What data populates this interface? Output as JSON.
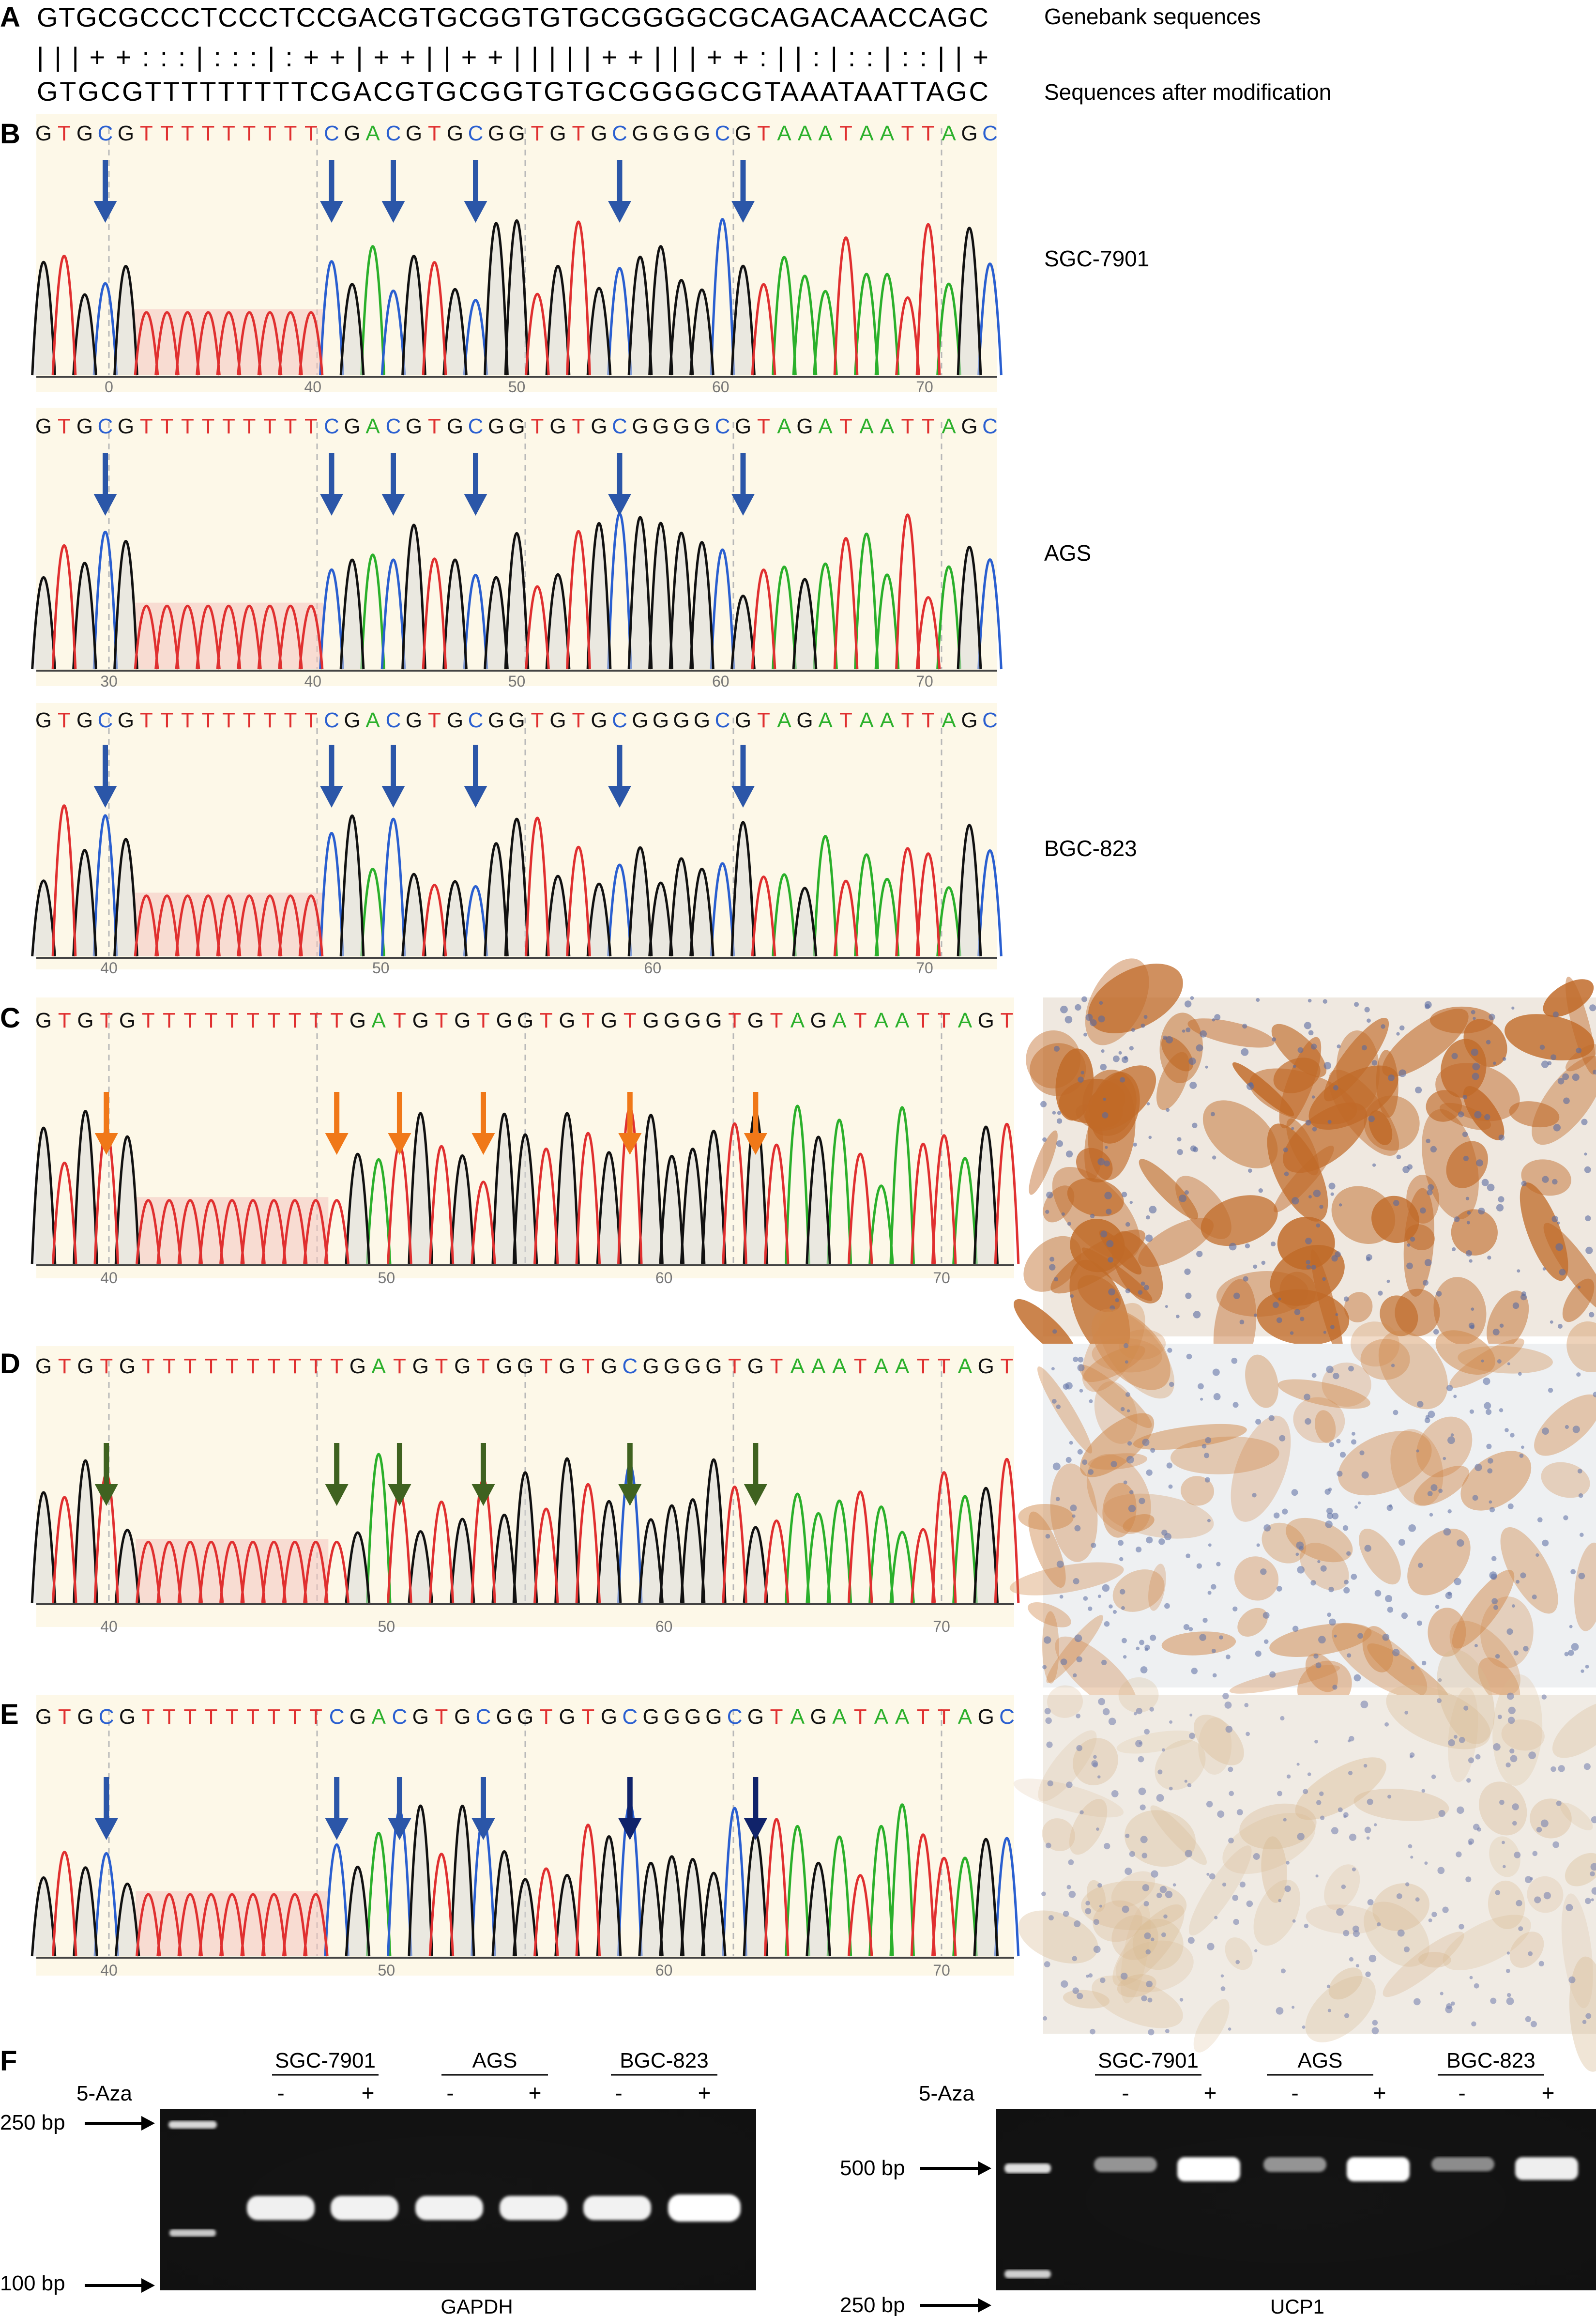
{
  "panel_letters": [
    "A",
    "B",
    "C",
    "D",
    "E",
    "F"
  ],
  "panel_a": {
    "row1": "GTGCGCCCTCCCTCCGACGTGCGGTGTGCGGGGCGCAGACAACCAGC",
    "row2": "|||++:::|:::|:++|++||++|||||++|||++:||:|::|::||+",
    "row3": "GTGCGTTTTTTTTTCGACGTGCGGTGTGCGGGGCGTAAATAATTAGC",
    "label1": "Genebank sequences",
    "label2": "Sequences after modification"
  },
  "base_colors": {
    "A": "#2bb02b",
    "C": "#2a5fd0",
    "G": "#111111",
    "T": "#e03030"
  },
  "arrow_colors": {
    "blue": "#2b56a8",
    "orange": "#f07818",
    "green": "#3f6220",
    "navy": "#10236a"
  },
  "panel_bg": "#fdf8e8",
  "traces": [
    {
      "id": "sgc",
      "seq": "GTGCGTTTTTTTTTCGACGTGCGGTGTGCGGGGCGTAAATAATTAGC",
      "label": "SGC-7901",
      "ticks": [
        "0",
        "40",
        "50",
        "60",
        "70"
      ],
      "arrow_color": "blue"
    },
    {
      "id": "ags",
      "seq": "GTGCGTTTTTTTTTCGACGTGCGGTGTGCGGGGCGTAGATAATTAGC",
      "label": "AGS",
      "ticks": [
        "30",
        "40",
        "50",
        "60",
        "70"
      ],
      "arrow_color": "blue"
    },
    {
      "id": "bgc",
      "seq": "GTGCGTTTTTTTTTCGACGTGCGGTGTGCGGGGCGTAGATAATTAGC",
      "label": "BGC-823",
      "ticks": [
        "40",
        "50",
        "60",
        "70"
      ],
      "arrow_color": "blue"
    },
    {
      "id": "c",
      "seq": "GTGTGTTTTTTTTTTGATGTGTGGTGTGTGGGGTGTAGATAATTAGT",
      "label": "",
      "ticks": [
        "40",
        "50",
        "60",
        "70"
      ],
      "arrow_color": "orange"
    },
    {
      "id": "d",
      "seq": "GTGTGTTTTTTTTTTGATGTGTGGTGTGCGGGGTGTAAATAATTAGT",
      "label": "",
      "ticks": [
        "40",
        "50",
        "60",
        "70"
      ],
      "arrow_color": "green"
    },
    {
      "id": "e",
      "seq": "GTGCGTTTTTTTTTCGACGTGCGGTGTGCGGGGCGTAGATAATTAGC",
      "label": "",
      "ticks": [
        "40",
        "50",
        "60",
        "70"
      ],
      "arrow_color": "blue"
    }
  ],
  "ihc_images": [
    {
      "id": "c",
      "stain_level": "strong"
    },
    {
      "id": "d",
      "stain_level": "moderate"
    },
    {
      "id": "e",
      "stain_level": "weak"
    }
  ],
  "gel_gapdh": {
    "title": "GAPDH",
    "treatment_label": "5-Aza",
    "cell_lines": [
      "SGC-7901",
      "AGS",
      "BGC-823"
    ],
    "lane_signs": [
      "-",
      "+",
      "-",
      "+",
      "-",
      "+"
    ],
    "markers": [
      "250 bp",
      "100 bp"
    ]
  },
  "gel_ucp1": {
    "title": "UCP1",
    "treatment_label": "5-Aza",
    "cell_lines": [
      "SGC-7901",
      "AGS",
      "BGC-823"
    ],
    "lane_signs": [
      "-",
      "+",
      "-",
      "+",
      "-",
      "+"
    ],
    "markers": [
      "500 bp",
      "250 bp"
    ],
    "band_intensity": [
      0.35,
      1.0,
      0.35,
      1.0,
      0.3,
      0.9
    ]
  }
}
